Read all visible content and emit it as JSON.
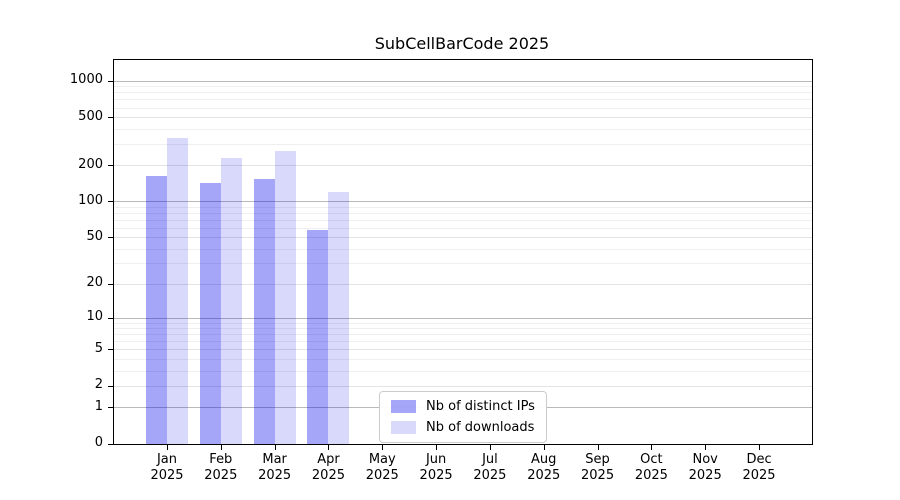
{
  "chart_data": {
    "type": "bar",
    "title": "SubCellBarCode 2025",
    "categories": [
      "Jan 2025",
      "Feb 2025",
      "Mar 2025",
      "Apr 2025",
      "May 2025",
      "Jun 2025",
      "Jul 2025",
      "Aug 2025",
      "Sep 2025",
      "Oct 2025",
      "Nov 2025",
      "Dec 2025"
    ],
    "series": [
      {
        "name": "Nb of distinct IPs",
        "color": "rgba(0,0,235,0.35)",
        "values": [
          165,
          143,
          154,
          58,
          0,
          0,
          0,
          0,
          0,
          0,
          0,
          0
        ]
      },
      {
        "name": "Nb of downloads",
        "color": "rgba(0,0,235,0.15)",
        "values": [
          340,
          233,
          265,
          120,
          0,
          0,
          0,
          0,
          0,
          0,
          0,
          0
        ]
      }
    ],
    "yscale": "log1p",
    "ymax": 1500,
    "yticks": [
      1000,
      500,
      200,
      100,
      50,
      20,
      10,
      5,
      2,
      1,
      0
    ],
    "xlabel": "",
    "ylabel": "",
    "grid": true,
    "legend_position": "lower center"
  }
}
